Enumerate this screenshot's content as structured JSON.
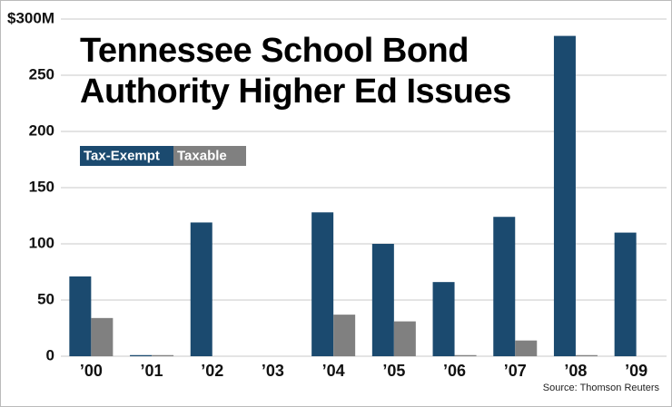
{
  "chart_data": {
    "type": "bar",
    "title": [
      "Tennessee School Bond",
      "Authority Higher Ed Issues"
    ],
    "source": "Source: Thomson Reuters",
    "categories": [
      "’00",
      "’01",
      "’02",
      "’03",
      "’04",
      "’05",
      "’06",
      "’07",
      "’08",
      "’09"
    ],
    "series": [
      {
        "name": "Tax-Exempt",
        "color": "#1b4a6f",
        "values": [
          71,
          1,
          119,
          0,
          128,
          100,
          66,
          124,
          285,
          110
        ]
      },
      {
        "name": "Taxable",
        "color": "#808080",
        "values": [
          34,
          1,
          0,
          0,
          37,
          31,
          1,
          14,
          1,
          0
        ]
      }
    ],
    "ylim": [
      0,
      300
    ],
    "yticks": [
      0,
      50,
      100,
      150,
      200,
      250,
      {
        "value": 300,
        "label": "$300M"
      }
    ],
    "grid": true
  }
}
